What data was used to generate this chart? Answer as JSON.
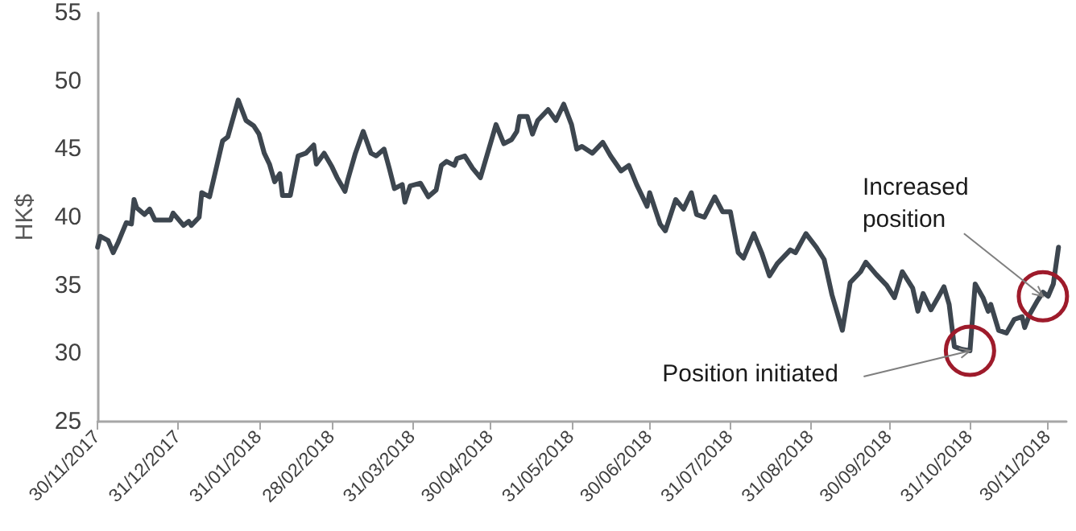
{
  "chart_data": {
    "type": "line",
    "ylabel": "HK$",
    "x": [
      "2017-11-30",
      "2017-12-01",
      "2017-12-04",
      "2017-12-06",
      "2017-12-08",
      "2017-12-11",
      "2017-12-13",
      "2017-12-14",
      "2017-12-15",
      "2017-12-18",
      "2017-12-20",
      "2017-12-22",
      "2017-12-28",
      "2017-12-29",
      "2018-01-02",
      "2018-01-04",
      "2018-01-05",
      "2018-01-08",
      "2018-01-09",
      "2018-01-12",
      "2018-01-17",
      "2018-01-19",
      "2018-01-23",
      "2018-01-26",
      "2018-01-29",
      "2018-01-31",
      "2018-02-02",
      "2018-02-04",
      "2018-02-06",
      "2018-02-08",
      "2018-02-09",
      "2018-02-12",
      "2018-02-15",
      "2018-02-18",
      "2018-02-21",
      "2018-02-22",
      "2018-02-25",
      "2018-02-28",
      "2018-03-02",
      "2018-03-05",
      "2018-03-06",
      "2018-03-09",
      "2018-03-12",
      "2018-03-15",
      "2018-03-17",
      "2018-03-20",
      "2018-03-22",
      "2018-03-24",
      "2018-03-27",
      "2018-03-28",
      "2018-03-30",
      "2018-04-03",
      "2018-04-06",
      "2018-04-09",
      "2018-04-11",
      "2018-04-13",
      "2018-04-16",
      "2018-04-17",
      "2018-04-20",
      "2018-04-23",
      "2018-04-26",
      "2018-05-02",
      "2018-05-05",
      "2018-05-08",
      "2018-05-10",
      "2018-05-11",
      "2018-05-14",
      "2018-05-16",
      "2018-05-18",
      "2018-05-22",
      "2018-05-25",
      "2018-05-28",
      "2018-05-31",
      "2018-06-02",
      "2018-06-04",
      "2018-06-08",
      "2018-06-12",
      "2018-06-15",
      "2018-06-19",
      "2018-06-22",
      "2018-06-25",
      "2018-06-29",
      "2018-06-30",
      "2018-07-04",
      "2018-07-06",
      "2018-07-10",
      "2018-07-13",
      "2018-07-16",
      "2018-07-18",
      "2018-07-21",
      "2018-07-25",
      "2018-07-28",
      "2018-07-31",
      "2018-08-03",
      "2018-08-05",
      "2018-08-09",
      "2018-08-12",
      "2018-08-15",
      "2018-08-18",
      "2018-08-23",
      "2018-08-25",
      "2018-08-29",
      "2018-09-02",
      "2018-09-05",
      "2018-09-08",
      "2018-09-12",
      "2018-09-15",
      "2018-09-19",
      "2018-09-21",
      "2018-09-25",
      "2018-09-29",
      "2018-10-02",
      "2018-10-05",
      "2018-10-09",
      "2018-10-11",
      "2018-10-13",
      "2018-10-16",
      "2018-10-19",
      "2018-10-21",
      "2018-10-23",
      "2018-10-25",
      "2018-10-28",
      "2018-10-31",
      "2018-11-02",
      "2018-11-05",
      "2018-11-07",
      "2018-11-08",
      "2018-11-11",
      "2018-11-14",
      "2018-11-17",
      "2018-11-20",
      "2018-11-21",
      "2018-11-23",
      "2018-11-26",
      "2018-11-28",
      "2018-11-30",
      "2018-12-02",
      "2018-12-04"
    ],
    "series": [
      {
        "color": "#3d464f",
        "values": [
          37.8,
          38.6,
          38.3,
          37.4,
          38.2,
          39.6,
          39.5,
          41.3,
          40.7,
          40.2,
          40.6,
          39.8,
          39.8,
          40.3,
          39.4,
          39.7,
          39.4,
          40.0,
          41.8,
          41.5,
          45.6,
          45.9,
          48.6,
          47.1,
          46.7,
          46.1,
          44.7,
          43.9,
          42.6,
          43.2,
          41.6,
          41.6,
          44.5,
          44.7,
          45.3,
          43.9,
          44.7,
          43.7,
          42.9,
          41.9,
          42.7,
          44.7,
          46.3,
          44.7,
          44.5,
          45.0,
          43.6,
          42.1,
          42.4,
          41.1,
          42.3,
          42.5,
          41.5,
          42.0,
          43.8,
          44.1,
          43.8,
          44.3,
          44.5,
          43.6,
          42.9,
          46.8,
          45.4,
          45.7,
          46.3,
          47.4,
          47.4,
          46.1,
          47.1,
          47.9,
          47.1,
          48.3,
          46.8,
          45.0,
          45.2,
          44.7,
          45.5,
          44.5,
          43.4,
          43.8,
          42.4,
          40.8,
          41.8,
          39.5,
          39.0,
          41.3,
          40.6,
          41.8,
          40.2,
          40.0,
          41.5,
          40.4,
          40.4,
          37.4,
          37.0,
          38.8,
          37.4,
          35.7,
          36.6,
          37.6,
          37.4,
          38.8,
          37.8,
          36.9,
          34.3,
          31.7,
          35.2,
          36.0,
          36.7,
          35.8,
          35.0,
          34.1,
          36.0,
          34.8,
          33.1,
          34.4,
          33.2,
          34.2,
          34.9,
          33.6,
          30.5,
          30.3,
          30.2,
          35.1,
          34.1,
          33.1,
          33.6,
          31.7,
          31.5,
          32.5,
          32.7,
          31.9,
          32.9,
          33.9,
          34.5,
          34.2,
          35.1,
          37.8
        ]
      }
    ],
    "xlim": [
      "2017-11-30",
      "2018-12-07"
    ],
    "xticks": [
      {
        "value": "2017-11-30",
        "label": "30/11/2017"
      },
      {
        "value": "2017-12-31",
        "label": "31/12/2017"
      },
      {
        "value": "2018-01-31",
        "label": "31/01/2018"
      },
      {
        "value": "2018-02-28",
        "label": "28/02/2018"
      },
      {
        "value": "2018-03-31",
        "label": "31/03/2018"
      },
      {
        "value": "2018-04-30",
        "label": "30/04/2018"
      },
      {
        "value": "2018-05-31",
        "label": "31/05/2018"
      },
      {
        "value": "2018-06-30",
        "label": "30/06/2018"
      },
      {
        "value": "2018-07-31",
        "label": "31/07/2018"
      },
      {
        "value": "2018-08-31",
        "label": "31/08/2018"
      },
      {
        "value": "2018-09-30",
        "label": "30/09/2018"
      },
      {
        "value": "2018-10-31",
        "label": "31/10/2018"
      },
      {
        "value": "2018-11-30",
        "label": "30/11/2018"
      }
    ],
    "ylim": [
      25,
      55
    ],
    "yticks": [
      25,
      30,
      35,
      40,
      45,
      50,
      55
    ],
    "grid": false,
    "marker": "none",
    "line_style": "solid",
    "annotations": [
      {
        "text": "Position initiated",
        "x": "2018-10-31",
        "y": 30.2
      },
      {
        "text": "Increased position",
        "x": "2018-11-28",
        "y": 34.2
      }
    ]
  }
}
